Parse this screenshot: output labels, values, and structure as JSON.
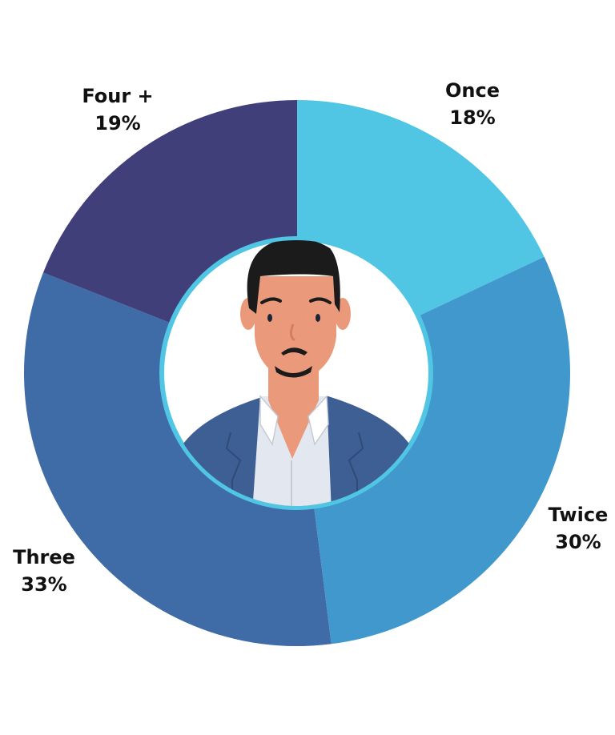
{
  "chart_data": {
    "type": "pie",
    "donut": true,
    "categories": [
      "Once",
      "Twice",
      "Three",
      "Four +"
    ],
    "values": [
      18,
      30,
      33,
      19
    ],
    "labels": [
      "18%",
      "30%",
      "33%",
      "19%"
    ],
    "colors": [
      "#50c6e4",
      "#4198cc",
      "#3f6ba6",
      "#413f7a"
    ],
    "start": "top",
    "direction": "clockwise",
    "center_image": "avatar-man-in-suit"
  }
}
